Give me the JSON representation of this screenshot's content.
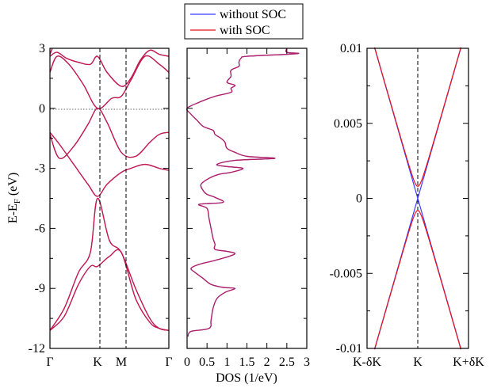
{
  "legend": {
    "items": [
      {
        "label": "without SOC",
        "color": "#3b3bff"
      },
      {
        "label": "with SOC",
        "color": "#e8121f"
      }
    ]
  },
  "chart_data": [
    {
      "type": "line",
      "title": "",
      "ylabel_main": "E-E",
      "ylabel_sub": "F",
      "ylabel_unit": " (eV)",
      "xlabel": "",
      "ylim": [
        -12,
        3
      ],
      "yticks": [
        3,
        0,
        -3,
        -6,
        -9,
        -12
      ],
      "ytick_labels": [
        "3",
        "0",
        "-3",
        "-6",
        "-9",
        "-12"
      ],
      "kpoints": [
        {
          "label": "Γ",
          "x": 0
        },
        {
          "label": "K",
          "x": 1
        },
        {
          "label": "M",
          "x": 1.5
        },
        {
          "label": "Γ",
          "x": 2.5
        }
      ],
      "fermi_level": 0,
      "bands": [
        {
          "x": [
            0,
            0.3,
            0.6,
            0.85,
            1,
            1.25,
            1.5,
            1.8,
            2.1,
            2.3,
            2.5
          ],
          "y": [
            -11.1,
            -10.4,
            -8.8,
            -7.9,
            -7.9,
            -7.4,
            -7.2,
            -9.5,
            -10.7,
            -11.0,
            -11.1
          ]
        },
        {
          "x": [
            0,
            0.3,
            0.6,
            0.85,
            1,
            1.25,
            1.5,
            1.8,
            2.1,
            2.3,
            2.5
          ],
          "y": [
            -11.1,
            -10.0,
            -8.2,
            -7.2,
            -4.5,
            -6.6,
            -7.2,
            -9.0,
            -10.5,
            -11.0,
            -11.1
          ]
        },
        {
          "x": [
            0,
            0.2,
            0.5,
            0.8,
            1,
            1.2,
            1.5,
            1.7,
            2.0,
            2.3,
            2.5
          ],
          "y": [
            -1.2,
            -1.8,
            -2.8,
            -3.8,
            -4.4,
            -3.8,
            -3.2,
            -3.0,
            -2.8,
            -3.0,
            -3.1
          ]
        },
        {
          "x": [
            0,
            0.2,
            0.5,
            0.8,
            1,
            1.2,
            1.5,
            1.8,
            2.1,
            2.3,
            2.5
          ],
          "y": [
            -1.3,
            -2.5,
            -1.9,
            -0.8,
            0.0,
            -0.7,
            -2.2,
            -2.4,
            -1.7,
            -1.3,
            -1.2
          ]
        },
        {
          "x": [
            0,
            0.15,
            0.4,
            0.7,
            1,
            1.3,
            1.5,
            1.7,
            2.0,
            2.3,
            2.5
          ],
          "y": [
            1.8,
            2.6,
            2.2,
            1.2,
            0.0,
            0.5,
            0.6,
            1.4,
            2.6,
            2.2,
            1.8
          ]
        },
        {
          "x": [
            0,
            0.15,
            0.35,
            0.6,
            0.85,
            1,
            1.2,
            1.5,
            1.7,
            1.9,
            2.1,
            2.3,
            2.5
          ],
          "y": [
            2.6,
            2.8,
            2.5,
            2.3,
            2.2,
            2.6,
            1.8,
            1.1,
            1.5,
            2.4,
            2.9,
            2.7,
            2.6
          ]
        },
        {
          "x": [
            0,
            0.05
          ],
          "y": [
            2.7,
            3.0
          ]
        }
      ]
    },
    {
      "type": "line",
      "title": "",
      "xlabel": "DOS (1/eV)",
      "ylabel": "",
      "xlim": [
        0,
        3
      ],
      "xticks": [
        0,
        0.5,
        1,
        1.5,
        2,
        2.5,
        3
      ],
      "xtick_labels": [
        "0",
        "0.5",
        "1",
        "1.5",
        "2",
        "2.5",
        "3"
      ],
      "ylim": [
        -12,
        3
      ],
      "series": [
        {
          "E": [
            -11.4,
            -11.15,
            -11.0,
            -10.6,
            -10.0,
            -9.5,
            -9.2,
            -9.0,
            -8.95,
            -8.8,
            -8.5,
            -8.2,
            -8.0,
            -7.8,
            -7.6,
            -7.4,
            -7.25,
            -7.15,
            -7.05,
            -6.8,
            -6.5,
            -6.0,
            -5.5,
            -5.0,
            -4.8,
            -4.7,
            -4.45,
            -4.3,
            -4.1,
            -3.8,
            -3.5,
            -3.3,
            -3.2,
            -3.0,
            -2.9,
            -2.8,
            -2.6,
            -2.5,
            -2.4,
            -2.2,
            -2.0,
            -1.7,
            -1.5,
            -1.3,
            -1.1,
            -0.9,
            -0.6,
            -0.3,
            0.0,
            0.3,
            0.6,
            0.8,
            1.0,
            1.15,
            1.3,
            1.6,
            1.9,
            2.1,
            2.3,
            2.5,
            2.6,
            2.7,
            2.75,
            2.8,
            3.0
          ],
          "DOS": [
            0.02,
            0.1,
            0.55,
            0.6,
            0.65,
            0.75,
            0.95,
            1.2,
            0.9,
            0.6,
            0.4,
            0.2,
            0.1,
            0.3,
            0.7,
            1.05,
            1.2,
            1.0,
            0.7,
            0.7,
            0.65,
            0.6,
            0.55,
            0.5,
            0.3,
            0.9,
            0.7,
            0.5,
            0.4,
            0.35,
            0.55,
            0.8,
            1.1,
            1.4,
            0.95,
            0.75,
            1.2,
            2.2,
            1.5,
            1.2,
            1.0,
            0.95,
            0.85,
            0.7,
            0.65,
            0.4,
            0.25,
            0.1,
            0.0,
            0.3,
            0.7,
            1.1,
            1.1,
            1.2,
            1.0,
            1.1,
            1.1,
            1.3,
            1.3,
            1.35,
            1.5,
            2.5,
            2.8,
            2.5,
            2.5
          ]
        }
      ]
    },
    {
      "type": "line",
      "title": "",
      "xlabel": "",
      "ylabel": "",
      "ylim": [
        -0.01,
        0.01
      ],
      "yticks": [
        0.01,
        0.005,
        0,
        -0.005,
        -0.01
      ],
      "ytick_labels": [
        "0.01",
        "0.005",
        "0",
        "-0.005",
        "-0.01"
      ],
      "kpoints": [
        {
          "label": "K-δK",
          "x": -1
        },
        {
          "label": "K",
          "x": 0
        },
        {
          "label": "K+δK",
          "x": 1
        }
      ],
      "with_soc_gap": 0.0008,
      "cone_slope": 0.0118,
      "series": [
        {
          "name": "without SOC",
          "gap": 0
        },
        {
          "name": "with SOC",
          "gap": 0.0008
        }
      ]
    }
  ]
}
